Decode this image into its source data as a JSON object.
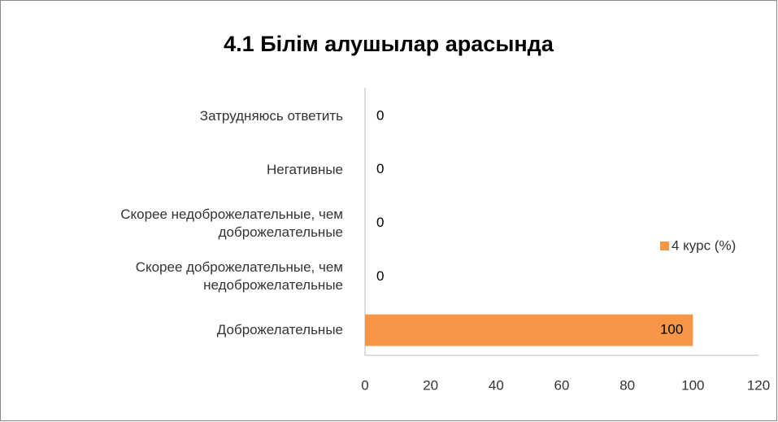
{
  "chart_data": {
    "type": "bar",
    "orientation": "horizontal",
    "title": "4.1 Білім алушылар арасында",
    "categories": [
      "Затрудняюсь ответить",
      "Негативные",
      "Скорее недоброжелательные, чем доброжелательные",
      "Скорее доброжелательные, чем недоброжелательные",
      "Доброжелательные"
    ],
    "series": [
      {
        "name": "4 курс (%)",
        "color": "#f79646",
        "values": [
          0,
          0,
          0,
          0,
          100
        ]
      }
    ],
    "xlim": [
      0,
      120
    ],
    "xticks": [
      0,
      20,
      40,
      60,
      80,
      100,
      120
    ],
    "grid": false,
    "legend": "right"
  }
}
